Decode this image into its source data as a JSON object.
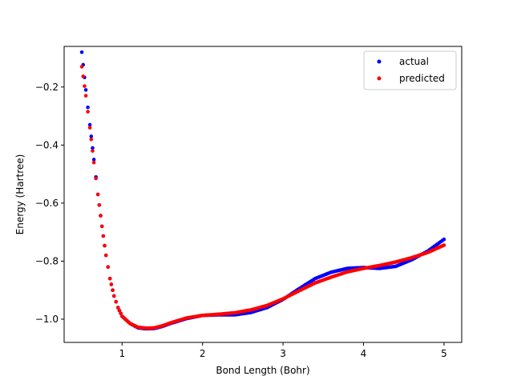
{
  "chart_data": {
    "type": "scatter",
    "title": "",
    "xlabel": "Bond Length (Bohr)",
    "ylabel": "Energy (Hartree)",
    "xlim": [
      0.28,
      5.22
    ],
    "ylim": [
      -1.08,
      -0.06
    ],
    "xticks": [
      1,
      2,
      3,
      4,
      5
    ],
    "yticks": [
      -1.0,
      -0.8,
      -0.6,
      -0.4,
      -0.2
    ],
    "xtick_labels": [
      "1",
      "2",
      "3",
      "4",
      "5"
    ],
    "ytick_labels": [
      "−1.0",
      "−0.8",
      "−0.6",
      "−0.4",
      "−0.2"
    ],
    "grid": false,
    "legend_position": "top-right",
    "series": [
      {
        "name": "actual",
        "color": "#0000ff",
        "x": [
          0.5,
          0.55,
          0.6,
          0.65,
          0.7,
          0.75,
          0.8,
          0.85,
          0.9,
          0.95,
          1.0,
          1.1,
          1.2,
          1.3,
          1.4,
          1.5,
          1.6,
          1.8,
          2.0,
          2.2,
          2.4,
          2.6,
          2.8,
          3.0,
          3.2,
          3.4,
          3.6,
          3.8,
          4.0,
          4.2,
          4.4,
          4.6,
          4.8,
          5.0
        ],
        "y": [
          -0.08,
          -0.21,
          -0.33,
          -0.45,
          -0.57,
          -0.68,
          -0.78,
          -0.86,
          -0.92,
          -0.96,
          -0.99,
          -1.015,
          -1.03,
          -1.033,
          -1.032,
          -1.025,
          -1.015,
          -0.998,
          -0.987,
          -0.985,
          -0.985,
          -0.977,
          -0.96,
          -0.932,
          -0.895,
          -0.86,
          -0.838,
          -0.825,
          -0.822,
          -0.825,
          -0.818,
          -0.795,
          -0.765,
          -0.725
        ]
      },
      {
        "name": "predicted",
        "color": "#ff0000",
        "x": [
          0.5,
          0.55,
          0.6,
          0.65,
          0.7,
          0.75,
          0.8,
          0.85,
          0.9,
          0.95,
          1.0,
          1.1,
          1.2,
          1.3,
          1.4,
          1.5,
          1.6,
          1.8,
          2.0,
          2.2,
          2.4,
          2.6,
          2.8,
          3.0,
          3.2,
          3.4,
          3.6,
          3.8,
          4.0,
          4.2,
          4.4,
          4.6,
          4.8,
          5.0
        ],
        "y": [
          -0.13,
          -0.23,
          -0.34,
          -0.46,
          -0.57,
          -0.68,
          -0.78,
          -0.86,
          -0.92,
          -0.96,
          -0.99,
          -1.015,
          -1.028,
          -1.031,
          -1.03,
          -1.023,
          -1.013,
          -0.996,
          -0.987,
          -0.983,
          -0.978,
          -0.968,
          -0.953,
          -0.93,
          -0.902,
          -0.875,
          -0.855,
          -0.837,
          -0.825,
          -0.815,
          -0.803,
          -0.788,
          -0.77,
          -0.745
        ]
      }
    ]
  }
}
